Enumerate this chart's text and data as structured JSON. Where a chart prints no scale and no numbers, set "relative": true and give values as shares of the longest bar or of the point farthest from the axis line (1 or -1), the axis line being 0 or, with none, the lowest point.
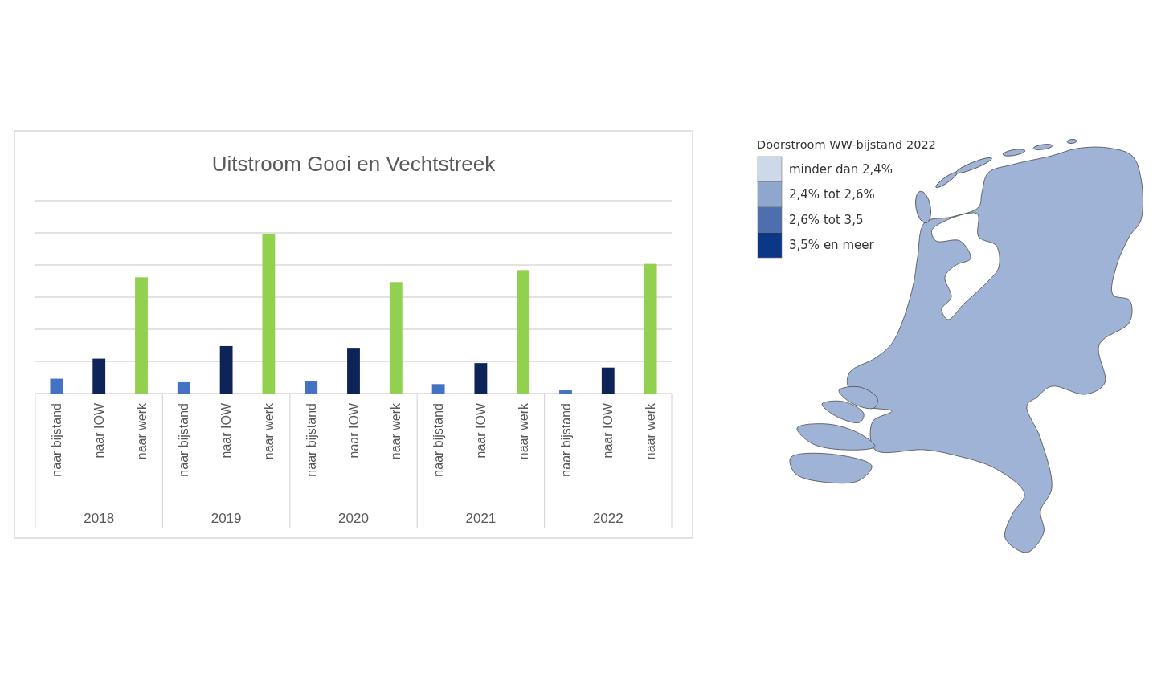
{
  "chart_data": [
    {
      "type": "bar",
      "title": "Uitstroom Gooi en Vechtstreek",
      "categories": [
        "2018",
        "2019",
        "2020",
        "2021",
        "2022"
      ],
      "relative": true,
      "grid": "y",
      "series": [
        {
          "name": "naar bijstand",
          "color": "#4472c4",
          "values": [
            0.093,
            0.071,
            0.079,
            0.059,
            0.02
          ]
        },
        {
          "name": "naar IOW",
          "color": "#0e2459",
          "values": [
            0.219,
            0.298,
            0.287,
            0.191,
            0.163
          ]
        },
        {
          "name": "naar werk",
          "color": "#92d050",
          "values": [
            0.73,
            1,
            0.7,
            0.775,
            0.814
          ]
        }
      ]
    },
    {
      "type": "other",
      "title": "Doorstroom WW-bijstand 2022",
      "categories": [
        "minder dan 2,4%",
        "2,4% tot 2,6%",
        "2,6% tot 3,5",
        "3,5% en meer"
      ],
      "colors": [
        "#cdd8ea",
        "#8fa6cf",
        "#4d6fae",
        "#0b3787"
      ]
    }
  ]
}
